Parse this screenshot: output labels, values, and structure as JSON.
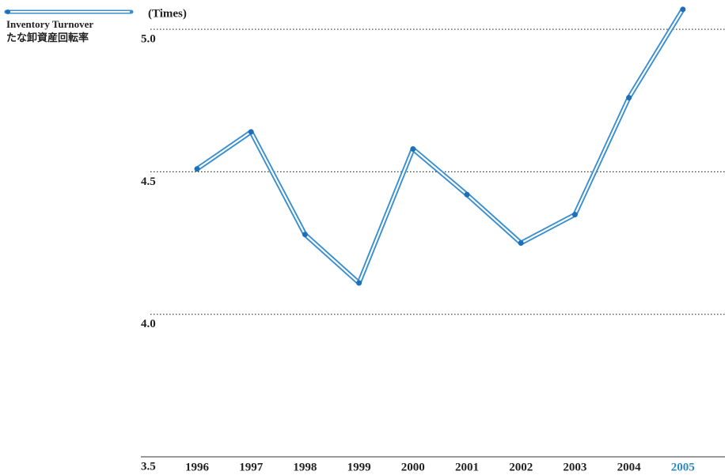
{
  "chart_data": {
    "type": "line",
    "y_label": "(Times)",
    "categories": [
      "1996",
      "1997",
      "1998",
      "1999",
      "2000",
      "2001",
      "2002",
      "2003",
      "2004",
      "2005"
    ],
    "series": [
      {
        "name": "Inventory Turnover",
        "name_ja": "たな卸資産回転率",
        "color": "#3a8fd0",
        "values": [
          4.51,
          4.64,
          4.28,
          4.11,
          4.58,
          4.42,
          4.25,
          4.35,
          4.76,
          5.07
        ]
      }
    ],
    "ylim": [
      3.5,
      5.1
    ],
    "yticks": [
      {
        "value": 3.5,
        "label": "3.5"
      },
      {
        "value": 4.0,
        "label": "4.0"
      },
      {
        "value": 4.5,
        "label": "4.5"
      },
      {
        "value": 5.0,
        "label": "5.0"
      }
    ],
    "grid": true
  }
}
